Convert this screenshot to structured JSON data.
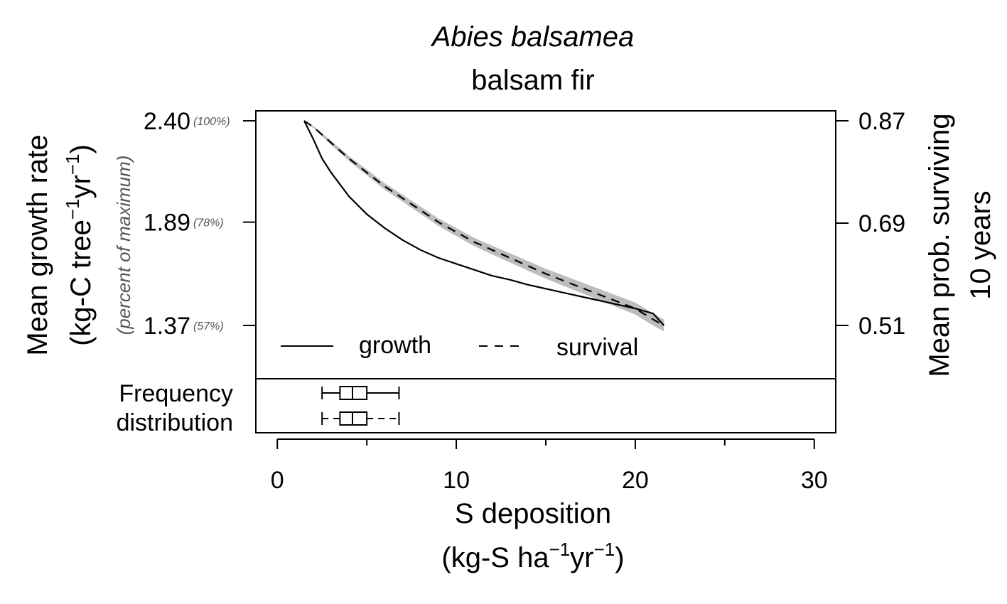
{
  "chart_data": {
    "type": "line",
    "title": "Abies balsamea",
    "subtitle": "balsam fir",
    "xlabel": {
      "main": "S deposition",
      "unit_prefix": "(kg-S ha",
      "sup1": "−1",
      "unit_mid": "yr",
      "sup2": "−1",
      "unit_suffix": ")"
    },
    "ylabel_left": {
      "line1": "Mean growth rate",
      "unit_prefix": "(kg-C tree",
      "sup1": "−1",
      "unit_mid": "yr",
      "sup2": "−1",
      "unit_suffix": ")"
    },
    "ylabel_left_secondary": "(percent of maximum)",
    "ylabel_right": {
      "line1": "Mean prob. surviving",
      "line2": "10 years"
    },
    "xlim": [
      -1.2,
      31.2
    ],
    "x_ticks": [
      0,
      10,
      20,
      30
    ],
    "x_minor_ticks": [
      5,
      15,
      25
    ],
    "ylim_left": [
      1.1,
      2.45
    ],
    "y_ticks_left": [
      {
        "value": 2.4,
        "label": "2.40",
        "pct": "(100%)"
      },
      {
        "value": 1.89,
        "label": "1.89",
        "pct": "(78%)"
      },
      {
        "value": 1.37,
        "label": "1.37",
        "pct": "(57%)"
      }
    ],
    "y_ticks_right": [
      {
        "value": 0.87,
        "label": "0.87"
      },
      {
        "value": 0.69,
        "label": "0.69"
      },
      {
        "value": 0.51,
        "label": "0.51"
      }
    ],
    "series": [
      {
        "name": "growth",
        "style": "solid",
        "color": "#000000",
        "x": [
          1.5,
          2.0,
          2.5,
          3.0,
          4.0,
          5.0,
          6.0,
          7.0,
          8.0,
          9.0,
          10.0,
          11.0,
          12.0,
          13.0,
          14.0,
          15.0,
          16.0,
          17.0,
          18.0,
          19.0,
          20.0,
          21.0,
          21.6
        ],
        "y": [
          2.4,
          2.31,
          2.21,
          2.14,
          2.02,
          1.93,
          1.86,
          1.8,
          1.75,
          1.71,
          1.68,
          1.65,
          1.62,
          1.6,
          1.575,
          1.555,
          1.535,
          1.515,
          1.495,
          1.475,
          1.455,
          1.43,
          1.37
        ]
      },
      {
        "name": "survival",
        "style": "dashed",
        "color": "#000000",
        "x": [
          1.5,
          2.0,
          3.0,
          4.0,
          5.0,
          6.0,
          7.0,
          8.0,
          9.0,
          10.0,
          11.0,
          12.0,
          13.0,
          14.0,
          15.0,
          16.0,
          17.0,
          18.0,
          19.0,
          20.0,
          21.0,
          21.6
        ],
        "y": [
          2.4,
          2.37,
          2.29,
          2.21,
          2.14,
          2.07,
          2.01,
          1.95,
          1.89,
          1.84,
          1.79,
          1.75,
          1.71,
          1.67,
          1.63,
          1.595,
          1.56,
          1.525,
          1.49,
          1.455,
          1.4,
          1.37
        ],
        "ci_halfwidth": [
          0.0,
          0.005,
          0.01,
          0.012,
          0.014,
          0.016,
          0.017,
          0.018,
          0.019,
          0.02,
          0.021,
          0.022,
          0.023,
          0.024,
          0.025,
          0.026,
          0.027,
          0.028,
          0.029,
          0.03,
          0.03,
          0.03
        ]
      }
    ],
    "legend": {
      "position": "bottom",
      "items": [
        {
          "label": "growth",
          "style": "solid"
        },
        {
          "label": "survival",
          "style": "dashed"
        }
      ]
    },
    "frequency_distribution": {
      "label_line1": "Frequency",
      "label_line2": "distribution",
      "boxes": [
        {
          "name": "growth",
          "whisker_style": "solid",
          "min": 2.5,
          "q1": 3.5,
          "median": 4.2,
          "q3": 5.0,
          "max": 6.8
        },
        {
          "name": "survival",
          "whisker_style": "dashed",
          "min": 2.5,
          "q1": 3.5,
          "median": 4.2,
          "q3": 5.0,
          "max": 6.8
        }
      ]
    }
  }
}
